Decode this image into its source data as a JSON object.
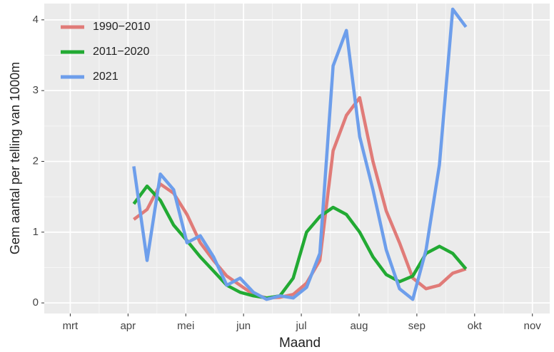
{
  "chart_data": {
    "type": "line",
    "x_label": "Maand",
    "y_label": "Gem aantal per telling van 1000m",
    "x": [
      4.1,
      4.33,
      4.56,
      4.79,
      5.02,
      5.25,
      5.48,
      5.71,
      5.94,
      6.17,
      6.4,
      6.63,
      6.86,
      7.09,
      7.32,
      7.55,
      7.78,
      8.01,
      8.24,
      8.47,
      8.7,
      8.93,
      9.16,
      9.39,
      9.62,
      9.85
    ],
    "series": [
      {
        "name": "1990−2010",
        "color": "#e07b78",
        "values": [
          1.18,
          1.32,
          1.68,
          1.55,
          1.25,
          0.85,
          0.6,
          0.38,
          0.25,
          0.12,
          0.07,
          0.08,
          0.12,
          0.28,
          0.6,
          2.15,
          2.65,
          2.9,
          2.0,
          1.3,
          0.85,
          0.35,
          0.2,
          0.25,
          0.42,
          0.48
        ]
      },
      {
        "name": "2011−2020",
        "color": "#22aa33",
        "values": [
          1.4,
          1.65,
          1.45,
          1.1,
          0.88,
          0.65,
          0.45,
          0.25,
          0.15,
          0.1,
          0.07,
          0.1,
          0.35,
          1.0,
          1.22,
          1.35,
          1.25,
          1.0,
          0.65,
          0.4,
          0.3,
          0.38,
          0.7,
          0.8,
          0.7,
          0.48
        ]
      },
      {
        "name": "2021",
        "color": "#6d9eeb",
        "values": [
          1.93,
          0.6,
          1.82,
          1.6,
          0.85,
          0.95,
          0.65,
          0.25,
          0.35,
          0.15,
          0.05,
          0.1,
          0.07,
          0.22,
          0.7,
          3.35,
          3.85,
          2.35,
          1.6,
          0.75,
          0.2,
          0.05,
          0.75,
          1.95,
          4.15,
          3.9
        ]
      }
    ],
    "xlim": [
      2.55,
      11.3
    ],
    "xticks": [
      {
        "value": 3,
        "label": "mrt"
      },
      {
        "value": 4,
        "label": "apr"
      },
      {
        "value": 5,
        "label": "mei"
      },
      {
        "value": 6,
        "label": "jun"
      },
      {
        "value": 7,
        "label": "jul"
      },
      {
        "value": 8,
        "label": "aug"
      },
      {
        "value": 9,
        "label": "sep"
      },
      {
        "value": 10,
        "label": "okt"
      },
      {
        "value": 11,
        "label": "nov"
      }
    ],
    "ylim": [
      -0.15,
      4.23
    ],
    "yticks": [
      0,
      1,
      2,
      3,
      4
    ],
    "grid": true,
    "legend": "top-left"
  }
}
